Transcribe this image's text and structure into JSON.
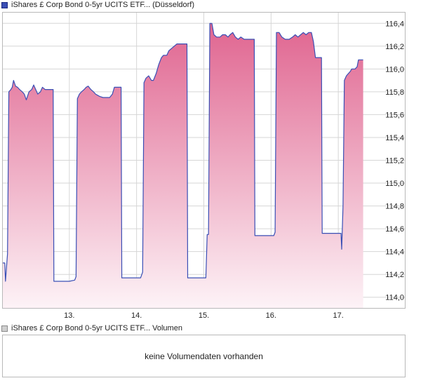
{
  "legend": {
    "price_label": "iShares £ Corp Bond 0-5yr UCITS ETF... (Düsseldorf)",
    "volume_label": "iShares £ Corp Bond 0-5yr UCITS ETF... Volumen"
  },
  "volume_panel": {
    "message": "keine Volumendaten vorhanden"
  },
  "colors": {
    "line": "#3a4fb5",
    "fill_top": "#e06590",
    "fill_bottom": "#fdf3f7",
    "grid": "#d6d6d6",
    "frame": "#b9b9b9"
  },
  "chart_data": {
    "type": "area",
    "title": "",
    "xlabel": "",
    "ylabel": "",
    "x_unit": "day-of-month",
    "ylim": [
      113.9,
      116.5
    ],
    "y_ticks": [
      114.0,
      114.2,
      114.4,
      114.6,
      114.8,
      115.0,
      115.2,
      115.4,
      115.6,
      115.8,
      116.0,
      116.2,
      116.4
    ],
    "y_tick_labels": [
      "114,0",
      "114,2",
      "114,4",
      "114,6",
      "114,8",
      "115,0",
      "115,2",
      "115,4",
      "115,6",
      "115,8",
      "116,0",
      "116,2",
      "116,4"
    ],
    "x_range": [
      12.0,
      18.0
    ],
    "x_ticks": [
      13,
      14,
      15,
      16,
      17
    ],
    "x_tick_labels": [
      "13.",
      "14.",
      "15.",
      "16.",
      "17."
    ],
    "grid": true,
    "series": [
      {
        "values": [
          [
            12.0,
            114.3
          ],
          [
            12.04,
            114.3
          ],
          [
            12.05,
            114.14
          ],
          [
            12.08,
            114.38
          ],
          [
            12.1,
            115.8
          ],
          [
            12.13,
            115.82
          ],
          [
            12.15,
            115.84
          ],
          [
            12.17,
            115.9
          ],
          [
            12.2,
            115.85
          ],
          [
            12.23,
            115.84
          ],
          [
            12.26,
            115.82
          ],
          [
            12.3,
            115.8
          ],
          [
            12.33,
            115.78
          ],
          [
            12.36,
            115.73
          ],
          [
            12.4,
            115.8
          ],
          [
            12.44,
            115.82
          ],
          [
            12.47,
            115.86
          ],
          [
            12.5,
            115.82
          ],
          [
            12.53,
            115.78
          ],
          [
            12.57,
            115.8
          ],
          [
            12.6,
            115.84
          ],
          [
            12.64,
            115.82
          ],
          [
            12.76,
            115.82
          ],
          [
            12.77,
            114.14
          ],
          [
            12.92,
            114.14
          ],
          [
            13.0,
            114.14
          ],
          [
            13.08,
            114.15
          ],
          [
            13.1,
            114.18
          ],
          [
            13.12,
            115.74
          ],
          [
            13.15,
            115.78
          ],
          [
            13.18,
            115.8
          ],
          [
            13.22,
            115.82
          ],
          [
            13.25,
            115.84
          ],
          [
            13.28,
            115.85
          ],
          [
            13.32,
            115.82
          ],
          [
            13.36,
            115.8
          ],
          [
            13.39,
            115.78
          ],
          [
            13.42,
            115.77
          ],
          [
            13.45,
            115.76
          ],
          [
            13.5,
            115.75
          ],
          [
            13.55,
            115.75
          ],
          [
            13.6,
            115.75
          ],
          [
            13.64,
            115.78
          ],
          [
            13.67,
            115.84
          ],
          [
            13.71,
            115.84
          ],
          [
            13.77,
            115.84
          ],
          [
            13.78,
            114.17
          ],
          [
            14.0,
            114.17
          ],
          [
            14.06,
            114.17
          ],
          [
            14.09,
            114.22
          ],
          [
            14.11,
            115.88
          ],
          [
            14.14,
            115.92
          ],
          [
            14.18,
            115.94
          ],
          [
            14.22,
            115.9
          ],
          [
            14.25,
            115.9
          ],
          [
            14.29,
            115.96
          ],
          [
            14.33,
            116.04
          ],
          [
            14.37,
            116.1
          ],
          [
            14.4,
            116.12
          ],
          [
            14.45,
            116.12
          ],
          [
            14.48,
            116.16
          ],
          [
            14.52,
            116.18
          ],
          [
            14.56,
            116.2
          ],
          [
            14.6,
            116.22
          ],
          [
            14.66,
            116.22
          ],
          [
            14.75,
            116.22
          ],
          [
            14.76,
            114.17
          ],
          [
            15.0,
            114.17
          ],
          [
            15.03,
            114.17
          ],
          [
            15.05,
            114.55
          ],
          [
            15.07,
            114.55
          ],
          [
            15.09,
            116.4
          ],
          [
            15.12,
            116.4
          ],
          [
            15.15,
            116.3
          ],
          [
            15.19,
            116.28
          ],
          [
            15.24,
            116.28
          ],
          [
            15.28,
            116.3
          ],
          [
            15.32,
            116.3
          ],
          [
            15.36,
            116.28
          ],
          [
            15.39,
            116.3
          ],
          [
            15.43,
            116.32
          ],
          [
            15.47,
            116.28
          ],
          [
            15.51,
            116.26
          ],
          [
            15.55,
            116.28
          ],
          [
            15.6,
            116.26
          ],
          [
            15.65,
            116.26
          ],
          [
            15.75,
            116.26
          ],
          [
            15.76,
            114.54
          ],
          [
            15.95,
            114.54
          ],
          [
            16.0,
            114.54
          ],
          [
            16.04,
            114.54
          ],
          [
            16.06,
            114.57
          ],
          [
            16.08,
            116.32
          ],
          [
            16.12,
            116.32
          ],
          [
            16.16,
            116.28
          ],
          [
            16.21,
            116.26
          ],
          [
            16.27,
            116.26
          ],
          [
            16.32,
            116.28
          ],
          [
            16.36,
            116.3
          ],
          [
            16.4,
            116.28
          ],
          [
            16.44,
            116.3
          ],
          [
            16.48,
            116.32
          ],
          [
            16.52,
            116.3
          ],
          [
            16.56,
            116.32
          ],
          [
            16.6,
            116.32
          ],
          [
            16.63,
            116.24
          ],
          [
            16.66,
            116.1
          ],
          [
            16.75,
            116.1
          ],
          [
            16.76,
            114.56
          ],
          [
            17.0,
            114.56
          ],
          [
            17.04,
            114.56
          ],
          [
            17.05,
            114.42
          ],
          [
            17.07,
            114.8
          ],
          [
            17.09,
            115.9
          ],
          [
            17.12,
            115.94
          ],
          [
            17.15,
            115.96
          ],
          [
            17.18,
            115.98
          ],
          [
            17.2,
            116.0
          ],
          [
            17.25,
            116.0
          ],
          [
            17.28,
            116.02
          ],
          [
            17.3,
            116.08
          ],
          [
            17.37,
            116.08
          ]
        ]
      }
    ]
  }
}
